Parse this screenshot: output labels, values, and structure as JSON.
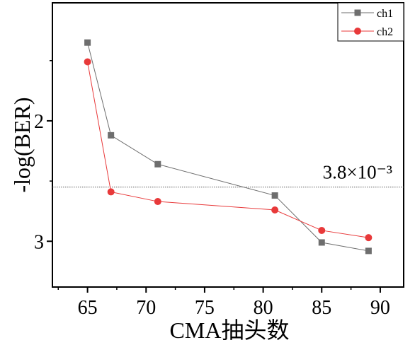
{
  "chart_data": {
    "type": "line",
    "xlabel": "CMA抽头数",
    "ylabel": "-log(BER)",
    "xlim": [
      62,
      92
    ],
    "ylim": [
      3.38,
      1.02
    ],
    "y_axis_inverted": true,
    "x_ticks": [
      65,
      70,
      75,
      80,
      85,
      90
    ],
    "x_tick_labels": [
      "65",
      "70",
      "75",
      "80",
      "85",
      "90"
    ],
    "y_ticks": [
      2,
      3
    ],
    "y_tick_labels": [
      "2",
      "3"
    ],
    "grid": false,
    "legend_position": "top-right",
    "series": [
      {
        "name": "ch1",
        "color": "#6e6e6e",
        "marker": "square",
        "x": [
          65,
          67,
          71,
          81,
          85,
          89
        ],
        "y": [
          1.35,
          2.12,
          2.36,
          2.62,
          3.01,
          3.08
        ]
      },
      {
        "name": "ch2",
        "color": "#e8393a",
        "marker": "circle",
        "x": [
          65,
          67,
          71,
          81,
          85,
          89
        ],
        "y": [
          1.51,
          2.59,
          2.67,
          2.74,
          2.91,
          2.97
        ]
      }
    ],
    "reference_line": {
      "y": 2.55,
      "label": "3.8×10⁻³",
      "style": "dotted",
      "color": "#555555"
    }
  }
}
